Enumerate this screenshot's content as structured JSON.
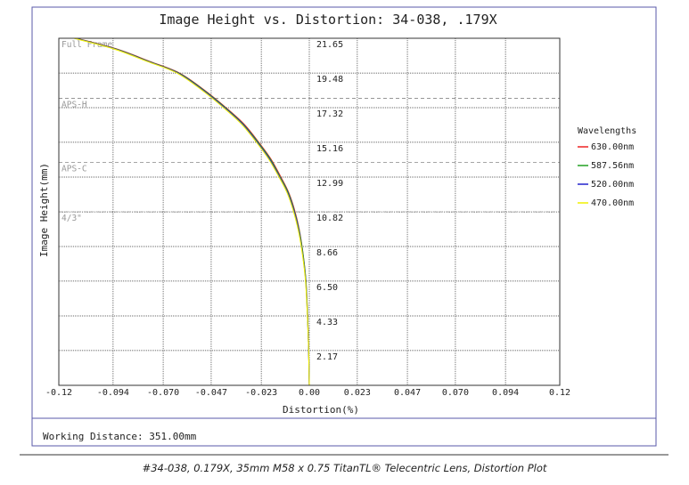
{
  "chart_data": {
    "type": "line",
    "title": "Image Height vs. Distortion: 34-038, .179X",
    "xlabel": "Distortion(%)",
    "ylabel": "Image Height(mm)",
    "xlim": [
      -0.12,
      0.12
    ],
    "ylim": [
      0,
      21.65
    ],
    "x_ticks": [
      "-0.12",
      "-0.094",
      "-0.070",
      "-0.047",
      "-0.023",
      "0.00",
      "0.023",
      "0.047",
      "0.070",
      "0.094",
      "0.12"
    ],
    "x_tick_values": [
      -0.12,
      -0.094,
      -0.07,
      -0.047,
      -0.023,
      0.0,
      0.023,
      0.047,
      0.07,
      0.094,
      0.12
    ],
    "y_ticks": [
      "2.17",
      "4.33",
      "6.50",
      "8.66",
      "10.82",
      "12.99",
      "15.16",
      "17.32",
      "19.48",
      "21.65"
    ],
    "y_tick_values": [
      2.17,
      4.33,
      6.5,
      8.66,
      10.82,
      12.99,
      15.16,
      17.32,
      19.48,
      21.65
    ],
    "grid": true,
    "legend_title": "Wavelengths",
    "legend_position": "right",
    "sensor_markers": [
      {
        "label": "Full Frame",
        "y": 21.65
      },
      {
        "label": "APS-H",
        "y": 17.9
      },
      {
        "label": "APS-C",
        "y": 13.9
      },
      {
        "label": "4/3\"",
        "y": 10.82
      }
    ],
    "series": [
      {
        "name": "630.00nm",
        "color": "#ee2222",
        "x": [
          0.0,
          -0.0003,
          -0.0008,
          -0.0016,
          -0.0028,
          -0.0045,
          -0.0068,
          -0.0098,
          -0.0136,
          -0.0183,
          -0.0242,
          -0.0313,
          -0.0399,
          -0.0501,
          -0.0622,
          -0.0763,
          -0.0927,
          -0.1116
        ],
        "y": [
          0.0,
          2.17,
          4.33,
          6.5,
          8.0,
          9.5,
          10.82,
          12.0,
          12.99,
          14.1,
          15.16,
          16.3,
          17.32,
          18.4,
          19.48,
          20.2,
          21.0,
          21.65
        ]
      },
      {
        "name": "587.56nm",
        "color": "#22a022",
        "x": [
          0.0,
          -0.0003,
          -0.0008,
          -0.0016,
          -0.0028,
          -0.0046,
          -0.007,
          -0.01,
          -0.0139,
          -0.0186,
          -0.0245,
          -0.0317,
          -0.0402,
          -0.0504,
          -0.0625,
          -0.0767,
          -0.0931,
          -0.112
        ],
        "y": [
          0.0,
          2.17,
          4.33,
          6.5,
          8.0,
          9.5,
          10.82,
          12.0,
          12.99,
          14.1,
          15.16,
          16.3,
          17.32,
          18.4,
          19.48,
          20.2,
          21.0,
          21.65
        ]
      },
      {
        "name": "520.00nm",
        "color": "#2222cc",
        "x": [
          0.0,
          -0.0003,
          -0.0009,
          -0.0017,
          -0.003,
          -0.0048,
          -0.0072,
          -0.0103,
          -0.0142,
          -0.019,
          -0.0249,
          -0.032,
          -0.0406,
          -0.0508,
          -0.0629,
          -0.0771,
          -0.0935,
          -0.1124
        ],
        "y": [
          0.0,
          2.17,
          4.33,
          6.5,
          8.0,
          9.5,
          10.82,
          12.0,
          12.99,
          14.1,
          15.16,
          16.3,
          17.32,
          18.4,
          19.48,
          20.2,
          21.0,
          21.65
        ]
      },
      {
        "name": "470.00nm",
        "color": "#f0f000",
        "x": [
          0.0,
          -0.0003,
          -0.0009,
          -0.0018,
          -0.0031,
          -0.005,
          -0.0075,
          -0.0106,
          -0.0145,
          -0.0194,
          -0.0253,
          -0.0325,
          -0.0411,
          -0.0513,
          -0.0634,
          -0.0776,
          -0.094,
          -0.1128
        ],
        "y": [
          0.0,
          2.17,
          4.33,
          6.5,
          8.0,
          9.5,
          10.82,
          12.0,
          12.99,
          14.1,
          15.16,
          16.3,
          17.32,
          18.4,
          19.48,
          20.2,
          21.0,
          21.65
        ]
      }
    ]
  },
  "footer": {
    "working_distance": "Working Distance: 351.00mm",
    "caption": "#34-038, 0.179X, 35mm M58 x 0.75 TitanTL® Telecentric Lens, Distortion Plot"
  }
}
